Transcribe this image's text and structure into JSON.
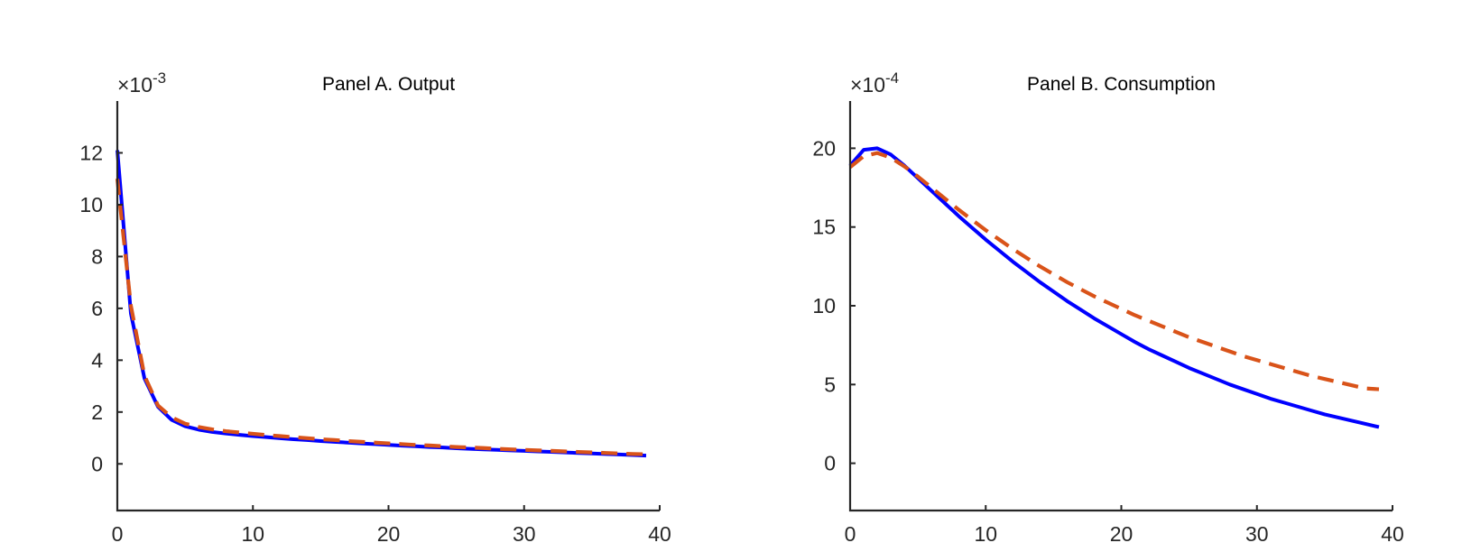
{
  "chart_data": [
    {
      "type": "line",
      "title": "Panel A. Output",
      "xlabel": "",
      "ylabel": "",
      "y_exponent": "-3",
      "xlim": [
        0,
        40
      ],
      "ylim": [
        -1.8,
        14
      ],
      "xticks": [
        0,
        10,
        20,
        30,
        40
      ],
      "yticks": [
        0,
        2,
        4,
        6,
        8,
        10,
        12
      ],
      "grid": false,
      "series": [
        {
          "color": "#0000ff",
          "style": "solid",
          "x": [
            0,
            1,
            2,
            3,
            4,
            5,
            6,
            7,
            8,
            9,
            10,
            11,
            12,
            13,
            14,
            15,
            16,
            17,
            18,
            19,
            20,
            21,
            22,
            23,
            24,
            25,
            26,
            27,
            28,
            29,
            30,
            31,
            32,
            33,
            34,
            35,
            36,
            37,
            38,
            39
          ],
          "values": [
            12.1,
            5.8,
            3.3,
            2.2,
            1.7,
            1.45,
            1.32,
            1.23,
            1.17,
            1.12,
            1.07,
            1.03,
            0.99,
            0.95,
            0.92,
            0.88,
            0.85,
            0.82,
            0.79,
            0.76,
            0.73,
            0.7,
            0.68,
            0.65,
            0.63,
            0.6,
            0.58,
            0.56,
            0.54,
            0.52,
            0.5,
            0.48,
            0.46,
            0.44,
            0.42,
            0.4,
            0.38,
            0.36,
            0.34,
            0.32
          ]
        },
        {
          "color": "#d95319",
          "style": "dashed",
          "x": [
            0,
            1,
            2,
            3,
            4,
            5,
            6,
            7,
            8,
            9,
            10,
            11,
            12,
            13,
            14,
            15,
            16,
            17,
            18,
            19,
            20,
            21,
            22,
            23,
            24,
            25,
            26,
            27,
            28,
            29,
            30,
            31,
            32,
            33,
            34,
            35,
            36,
            37,
            38,
            39
          ],
          "values": [
            11.0,
            6.1,
            3.4,
            2.25,
            1.8,
            1.55,
            1.42,
            1.33,
            1.26,
            1.21,
            1.16,
            1.11,
            1.07,
            1.03,
            0.99,
            0.95,
            0.92,
            0.88,
            0.85,
            0.82,
            0.79,
            0.76,
            0.73,
            0.71,
            0.68,
            0.65,
            0.63,
            0.61,
            0.58,
            0.56,
            0.54,
            0.52,
            0.5,
            0.48,
            0.46,
            0.44,
            0.42,
            0.4,
            0.38,
            0.37
          ]
        }
      ]
    },
    {
      "type": "line",
      "title": "Panel B. Consumption",
      "xlabel": "",
      "ylabel": "",
      "y_exponent": "-4",
      "xlim": [
        0,
        40
      ],
      "ylim": [
        -3,
        23
      ],
      "xticks": [
        0,
        10,
        20,
        30,
        40
      ],
      "yticks": [
        0,
        5,
        10,
        15,
        20
      ],
      "grid": false,
      "series": [
        {
          "color": "#0000ff",
          "style": "solid",
          "x": [
            0,
            1,
            2,
            3,
            4,
            5,
            6,
            7,
            8,
            9,
            10,
            11,
            12,
            13,
            14,
            15,
            16,
            17,
            18,
            19,
            20,
            21,
            22,
            23,
            24,
            25,
            26,
            27,
            28,
            29,
            30,
            31,
            32,
            33,
            34,
            35,
            36,
            37,
            38,
            39
          ],
          "values": [
            18.9,
            19.9,
            20.0,
            19.6,
            18.9,
            18.1,
            17.3,
            16.5,
            15.7,
            14.95,
            14.2,
            13.5,
            12.8,
            12.15,
            11.5,
            10.9,
            10.3,
            9.75,
            9.2,
            8.7,
            8.2,
            7.7,
            7.25,
            6.85,
            6.45,
            6.05,
            5.7,
            5.35,
            5.0,
            4.7,
            4.4,
            4.1,
            3.85,
            3.6,
            3.35,
            3.1,
            2.9,
            2.7,
            2.5,
            2.3
          ]
        },
        {
          "color": "#d95319",
          "style": "dashed",
          "x": [
            0,
            1,
            2,
            3,
            4,
            5,
            6,
            7,
            8,
            9,
            10,
            11,
            12,
            13,
            14,
            15,
            16,
            17,
            18,
            19,
            20,
            21,
            22,
            23,
            24,
            25,
            26,
            27,
            28,
            29,
            30,
            31,
            32,
            33,
            34,
            35,
            36,
            37,
            38,
            39
          ],
          "values": [
            18.8,
            19.5,
            19.7,
            19.4,
            18.85,
            18.2,
            17.5,
            16.8,
            16.1,
            15.45,
            14.8,
            14.2,
            13.6,
            13.05,
            12.5,
            12.0,
            11.5,
            11.05,
            10.6,
            10.2,
            9.8,
            9.4,
            9.05,
            8.7,
            8.35,
            8.0,
            7.7,
            7.4,
            7.1,
            6.8,
            6.55,
            6.3,
            6.05,
            5.8,
            5.55,
            5.35,
            5.15,
            4.95,
            4.75,
            4.7
          ]
        }
      ]
    }
  ]
}
